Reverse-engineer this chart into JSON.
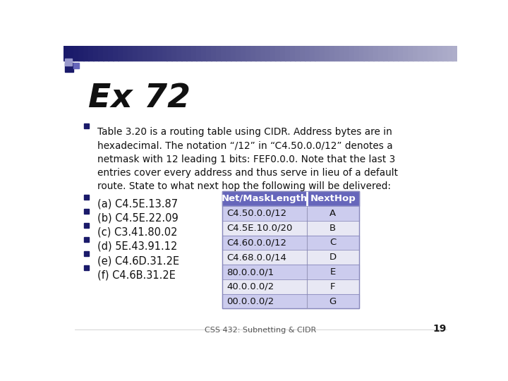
{
  "title": "Ex 72",
  "title_fontsize": 34,
  "background_color": "#ffffff",
  "header_bg": "#6666bb",
  "row_bg_light": "#ccccee",
  "row_bg_white": "#e8e8f4",
  "bullet_color": "#1a1a6a",
  "text_color": "#111111",
  "bullet_text_0": "Table 3.20 is a routing table using CIDR. Address bytes are in\nhexadecimal. The notation “/12” in “C4.50.0.0/12” denotes a\nnetmask with 12 leading 1 bits: FEF0.0.0. Note that the last 3\nentries cover every address and thus serve in lieu of a default\nroute. State to what next hop the following will be delivered:",
  "bullet_items": [
    "(a) C4.5E.13.87",
    "(b) C4.5E.22.09",
    "(c) C3.41.80.02",
    "(d) 5E.43.91.12",
    "(e) C4.6D.31.2E",
    "(f) C4.6B.31.2E"
  ],
  "table_headers": [
    "Net/MaskLength",
    "NextHop"
  ],
  "table_rows": [
    [
      "C4.50.0.0/12",
      "A"
    ],
    [
      "C4.5E.10.0/20",
      "B"
    ],
    [
      "C4.60.0.0/12",
      "C"
    ],
    [
      "C4.68.0.0/14",
      "D"
    ],
    [
      "80.0.0.0/1",
      "E"
    ],
    [
      "40.0.0.0/2",
      "F"
    ],
    [
      "00.0.0.0/2",
      "G"
    ]
  ],
  "footer_text": "CSS 432: Subnetting & CIDR",
  "footer_page": "19"
}
